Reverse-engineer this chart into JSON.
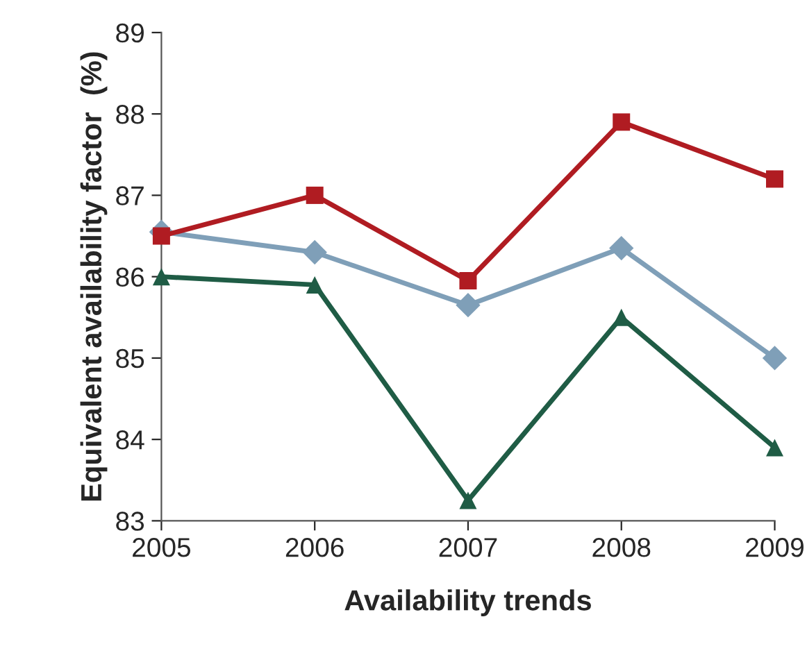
{
  "chart_data": {
    "type": "line",
    "xlabel": "Availability trends",
    "ylabel": "Equivalent availability factor  (%)",
    "x": [
      2005,
      2006,
      2007,
      2008,
      2009
    ],
    "xlim": [
      2005,
      2009
    ],
    "xticks": [
      2005,
      2006,
      2007,
      2008,
      2009
    ],
    "ylim": [
      83,
      89
    ],
    "yticks": [
      83,
      84,
      85,
      86,
      87,
      88,
      89
    ],
    "grid": false,
    "line_style": "solid",
    "series": [
      {
        "color": "#b01c22",
        "marker": "square",
        "values": [
          86.5,
          87.0,
          85.95,
          87.9,
          87.2
        ]
      },
      {
        "color": "#7f9fb8",
        "marker": "diamond",
        "values": [
          86.55,
          86.3,
          85.65,
          86.35,
          85.0
        ]
      },
      {
        "color": "#1f5c45",
        "marker": "triangle",
        "values": [
          86.0,
          85.9,
          83.25,
          85.5,
          83.9
        ]
      }
    ]
  }
}
